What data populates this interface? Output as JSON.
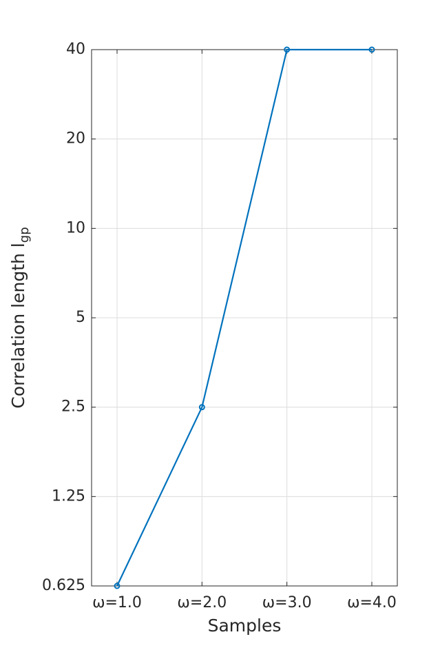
{
  "chart_data": {
    "type": "line",
    "xlabel": "Samples",
    "ylabel": "Correlation length l",
    "ylabel_subscript": "gp",
    "categories": [
      "ω=1.0",
      "ω=2.0",
      "ω=3.0",
      "ω=4.0"
    ],
    "values": [
      0.625,
      2.5,
      40,
      40
    ],
    "color": "#0072bd",
    "yscale": "log",
    "ylim": [
      0.625,
      40
    ],
    "yticks": [
      0.625,
      1.25,
      2.5,
      5,
      10,
      20,
      40
    ],
    "grid": true
  }
}
